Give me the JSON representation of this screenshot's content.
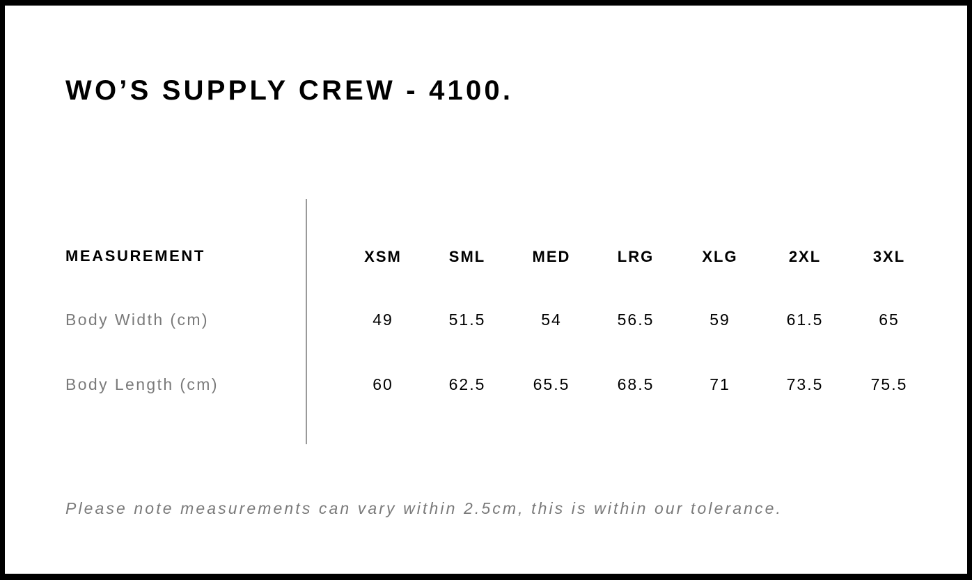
{
  "title": "WO’S SUPPLY CREW - 4100.",
  "table": {
    "header_label": "MEASUREMENT",
    "sizes": [
      "XSM",
      "SML",
      "MED",
      "LRG",
      "XLG",
      "2XL",
      "3XL"
    ],
    "rows": [
      {
        "label": "Body Width (cm)",
        "values": [
          "49",
          "51.5",
          "54",
          "56.5",
          "59",
          "61.5",
          "65"
        ]
      },
      {
        "label": "Body Length (cm)",
        "values": [
          "60",
          "62.5",
          "65.5",
          "68.5",
          "71",
          "73.5",
          "75.5"
        ]
      }
    ]
  },
  "note": "Please note measurements can vary within 2.5cm, this is within our tolerance."
}
